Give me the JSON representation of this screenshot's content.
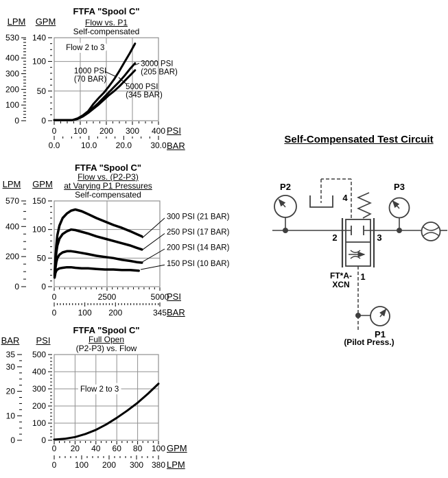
{
  "page": {
    "background": "#ffffff"
  },
  "colors": {
    "grid": "#8f8f8f",
    "curve": "#000000",
    "schematic": "#3f3f3f",
    "text": "#000000"
  },
  "circuit": {
    "heading": "Self-Compensated Test Circuit",
    "p2": "P2",
    "p3": "P3",
    "p1": "P1",
    "p1_note": "(Pilot Press.)",
    "port2": "2",
    "port3": "3",
    "port4": "4",
    "port1": "1",
    "model1": "FT*A-",
    "model2": "XCN"
  },
  "chart_data": [
    {
      "type": "line",
      "title": "FTFA \"Spool C\"",
      "subtitle": [
        "Flow vs. P1",
        "Self-compensated"
      ],
      "annotation": {
        "text": "Flow 2 to 3",
        "x": 45,
        "y": 124
      },
      "x": {
        "unit": "PSI",
        "min": 0,
        "max": 400,
        "ticks": [
          0,
          100,
          200,
          300,
          400
        ],
        "minor": 25,
        "grid": [
          100,
          200,
          300
        ]
      },
      "x2": {
        "unit": "BAR",
        "min": 0,
        "max": 30,
        "ticks": [
          0,
          10,
          20,
          30
        ],
        "tick_labels": [
          "0.0",
          "10.0",
          "20.0",
          "30.0"
        ],
        "minor": 2.5
      },
      "y": {
        "unit": "GPM",
        "min": 0,
        "max": 140,
        "ticks": [
          0,
          50,
          100,
          140
        ],
        "minor": 10,
        "grid": [
          50,
          100
        ]
      },
      "y2": {
        "unit": "LPM",
        "min": 0,
        "max": 530,
        "ticks": [
          0,
          100,
          200,
          300,
          400,
          530
        ],
        "minor": 20
      },
      "series": [
        {
          "name": "1000 PSI (70 BAR)",
          "points": [
            [
              0,
              1
            ],
            [
              70,
              1
            ],
            [
              90,
              4
            ],
            [
              110,
              9
            ],
            [
              130,
              16
            ],
            [
              150,
              28
            ],
            [
              170,
              38
            ],
            [
              190,
              47
            ],
            [
              210,
              58
            ],
            [
              230,
              70
            ],
            [
              250,
              84
            ],
            [
              270,
              99
            ],
            [
              290,
              114
            ],
            [
              310,
              130
            ]
          ]
        },
        {
          "name": "3000 PSI (205 BAR)",
          "points": [
            [
              0,
              1
            ],
            [
              70,
              1
            ],
            [
              90,
              3
            ],
            [
              110,
              8
            ],
            [
              130,
              14
            ],
            [
              150,
              22
            ],
            [
              170,
              30
            ],
            [
              190,
              39
            ],
            [
              210,
              48
            ],
            [
              230,
              57
            ],
            [
              250,
              66
            ],
            [
              270,
              76
            ],
            [
              290,
              87
            ],
            [
              310,
              97
            ]
          ]
        },
        {
          "name": "5000 PSI (345 BAR)",
          "points": [
            [
              0,
              1
            ],
            [
              70,
              1
            ],
            [
              90,
              3
            ],
            [
              110,
              7
            ],
            [
              130,
              13
            ],
            [
              150,
              20
            ],
            [
              170,
              27
            ],
            [
              190,
              35
            ],
            [
              210,
              43
            ],
            [
              230,
              50
            ],
            [
              250,
              58
            ],
            [
              270,
              67
            ],
            [
              290,
              76
            ],
            [
              310,
              85
            ]
          ]
        }
      ],
      "labels": [
        {
          "lines": [
            "1000 PSI",
            "(70 BAR)"
          ],
          "x": 76,
          "y": 80,
          "pointer": [
            [
              195,
              83
            ],
            [
              234,
              75
            ]
          ]
        },
        {
          "lines": [
            "3000 PSI",
            "(205 BAR)"
          ],
          "x": 332,
          "y": 92,
          "pointer": [
            [
              326,
              97
            ],
            [
              310,
              94
            ]
          ]
        },
        {
          "lines": [
            "5000 PSI",
            "(345 BAR)"
          ],
          "x": 274,
          "y": 53,
          "pointer": [
            [
              276,
              62
            ],
            [
              247,
              73
            ]
          ]
        }
      ]
    },
    {
      "type": "line",
      "title": "FTFA \"Spool C\"",
      "subtitle": [
        "Flow vs. (P2-P3)",
        "at Varying P1 Pressures",
        "Self-compensated"
      ],
      "x": {
        "unit": "PSI",
        "min": 0,
        "max": 5000,
        "ticks": [
          0,
          2500,
          5000
        ],
        "minor": 250,
        "grid": [
          2500
        ]
      },
      "x2": {
        "unit": "BAR",
        "min": 0,
        "max": 345,
        "ticks": [
          0,
          100,
          200,
          345
        ],
        "minor": 10
      },
      "y": {
        "unit": "GPM",
        "min": 0,
        "max": 150,
        "ticks": [
          0,
          50,
          100,
          150
        ],
        "minor": 10,
        "grid": [
          50,
          100
        ]
      },
      "y2": {
        "unit": "LPM",
        "min": 0,
        "max": 570,
        "ticks": [
          0,
          200,
          400,
          570
        ],
        "minor": 50
      },
      "series": [
        {
          "name": "300 PSI (21 BAR)",
          "points": [
            [
              20,
              22
            ],
            [
              60,
              50
            ],
            [
              100,
              72
            ],
            [
              150,
              90
            ],
            [
              250,
              107
            ],
            [
              400,
              120
            ],
            [
              600,
              128
            ],
            [
              800,
              133
            ],
            [
              1000,
              135
            ],
            [
              1300,
              132
            ],
            [
              1600,
              127
            ],
            [
              2000,
              120
            ],
            [
              2400,
              114
            ],
            [
              2800,
              108
            ],
            [
              3200,
              103
            ],
            [
              3600,
              97
            ],
            [
              3900,
              92
            ],
            [
              4150,
              88
            ]
          ]
        },
        {
          "name": "250 PSI (17 BAR)",
          "points": [
            [
              20,
              20
            ],
            [
              60,
              42
            ],
            [
              100,
              60
            ],
            [
              150,
              72
            ],
            [
              250,
              84
            ],
            [
              400,
              92
            ],
            [
              600,
              97
            ],
            [
              800,
              100
            ],
            [
              1000,
              99
            ],
            [
              1300,
              96
            ],
            [
              1600,
              93
            ],
            [
              2000,
              88
            ],
            [
              2400,
              84
            ],
            [
              2800,
              80
            ],
            [
              3200,
              76
            ],
            [
              3600,
              72
            ],
            [
              3900,
              68
            ],
            [
              4150,
              65
            ]
          ]
        },
        {
          "name": "200 PSI (14 BAR)",
          "points": [
            [
              20,
              18
            ],
            [
              60,
              32
            ],
            [
              100,
              43
            ],
            [
              150,
              50
            ],
            [
              250,
              56
            ],
            [
              400,
              60
            ],
            [
              600,
              62
            ],
            [
              800,
              62
            ],
            [
              1000,
              61
            ],
            [
              1300,
              59
            ],
            [
              1600,
              57
            ],
            [
              2000,
              54
            ],
            [
              2400,
              52
            ],
            [
              2800,
              50
            ],
            [
              3200,
              47
            ],
            [
              3600,
              45
            ],
            [
              3900,
              43
            ],
            [
              4150,
              42
            ]
          ]
        },
        {
          "name": "150 PSI (10 BAR)",
          "points": [
            [
              20,
              16
            ],
            [
              60,
              24
            ],
            [
              100,
              28
            ],
            [
              150,
              30
            ],
            [
              250,
              32
            ],
            [
              400,
              33
            ],
            [
              600,
              34
            ],
            [
              800,
              34
            ],
            [
              1000,
              33
            ],
            [
              1300,
              32
            ],
            [
              1600,
              32
            ],
            [
              2000,
              31
            ],
            [
              2400,
              30
            ],
            [
              2800,
              30
            ],
            [
              3200,
              29
            ],
            [
              3600,
              29
            ],
            [
              4000,
              28
            ]
          ]
        }
      ],
      "labels": [
        {
          "lines": [
            "300 PSI (21 BAR)"
          ],
          "x": 5325,
          "y": 118,
          "pointer": [
            [
              5227,
              120
            ],
            [
              4155,
              85
            ]
          ]
        },
        {
          "lines": [
            "250 PSI (17 BAR)"
          ],
          "x": 5325,
          "y": 91,
          "pointer": [
            [
              5227,
              93
            ],
            [
              4155,
              64
            ]
          ]
        },
        {
          "lines": [
            "200 PSI (14 BAR)"
          ],
          "x": 5325,
          "y": 64,
          "pointer": [
            [
              5227,
              66
            ],
            [
              4155,
              43
            ]
          ]
        },
        {
          "lines": [
            "150 PSI (10 BAR)"
          ],
          "x": 5325,
          "y": 36,
          "pointer": [
            [
              5227,
              38
            ],
            [
              4090,
              30
            ]
          ]
        }
      ]
    },
    {
      "type": "line",
      "title": "FTFA \"Spool C\"",
      "subtitle": [
        "Full Open",
        "(P2-P3) vs. Flow"
      ],
      "annotation": {
        "text": "Flow 2 to 3",
        "x": 25,
        "y": 300
      },
      "x": {
        "unit": "GPM",
        "min": 0,
        "max": 100,
        "ticks": [
          0,
          20,
          40,
          60,
          80,
          100
        ],
        "minor": 5,
        "grid": [
          20,
          40,
          60,
          80
        ]
      },
      "x2": {
        "unit": "LPM",
        "min": 0,
        "max": 380,
        "ticks": [
          0,
          100,
          200,
          300,
          380
        ],
        "minor": 20
      },
      "y": {
        "unit": "PSI",
        "min": 0,
        "max": 500,
        "ticks": [
          0,
          100,
          200,
          300,
          400,
          500
        ],
        "minor": 20,
        "grid": [
          100,
          200,
          300,
          400
        ]
      },
      "y2": {
        "unit": "BAR",
        "min": 0,
        "max": 35,
        "ticks": [
          0,
          10,
          20,
          30,
          35
        ],
        "minor": 2.5
      },
      "series": [
        {
          "name": "full-open",
          "points": [
            [
              0,
              4
            ],
            [
              10,
              9
            ],
            [
              20,
              19
            ],
            [
              30,
              37
            ],
            [
              40,
              61
            ],
            [
              50,
              93
            ],
            [
              60,
              131
            ],
            [
              70,
              173
            ],
            [
              80,
              219
            ],
            [
              90,
              272
            ],
            [
              100,
              330
            ]
          ]
        }
      ]
    }
  ]
}
